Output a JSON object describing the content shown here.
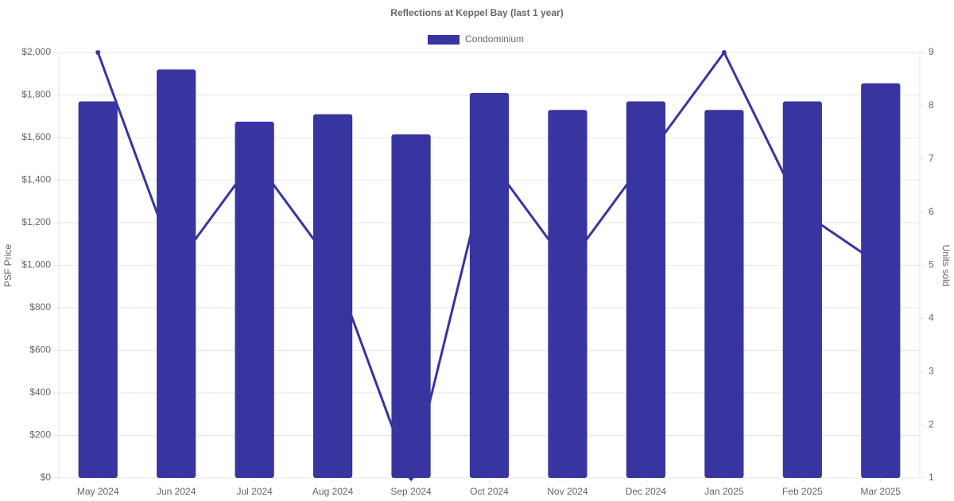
{
  "chart_data": {
    "type": "bar_line",
    "title": "Reflections at Keppel Bay (last 1 year)",
    "y_label": "PSF Price",
    "y2_label": "Units sold",
    "categories": [
      "May 2024",
      "Jun 2024",
      "Jul 2024",
      "Aug 2024",
      "Sep 2024",
      "Oct 2024",
      "Nov 2024",
      "Dec 2024",
      "Jan 2025",
      "Feb 2025",
      "Mar 2025"
    ],
    "series": [
      {
        "name": "Condominium",
        "type": "bar",
        "color": "#3834a0",
        "values": [
          1770,
          1920,
          1675,
          1710,
          1615,
          1810,
          1730,
          1770,
          1730,
          1770,
          1855
        ]
      },
      {
        "type": "line",
        "axis": "y2",
        "color": "#3834a0",
        "values": [
          9,
          5,
          7,
          5,
          1,
          7,
          5,
          7,
          9,
          6,
          5
        ]
      }
    ],
    "ylim": [
      0,
      2000
    ],
    "yticks": [
      {
        "value": 0,
        "label": "$0"
      },
      {
        "value": 200,
        "label": "$200"
      },
      {
        "value": 400,
        "label": "$400"
      },
      {
        "value": 600,
        "label": "$600"
      },
      {
        "value": 800,
        "label": "$800"
      },
      {
        "value": 1000,
        "label": "$1,000"
      },
      {
        "value": 1200,
        "label": "$1,200"
      },
      {
        "value": 1400,
        "label": "$1,400"
      },
      {
        "value": 1600,
        "label": "$1,600"
      },
      {
        "value": 1800,
        "label": "$1,800"
      },
      {
        "value": 2000,
        "label": "$2,000"
      }
    ],
    "y2lim": [
      1,
      9
    ],
    "y2ticks": [
      1,
      2,
      3,
      4,
      5,
      6,
      7,
      8,
      9
    ],
    "grid": true
  }
}
